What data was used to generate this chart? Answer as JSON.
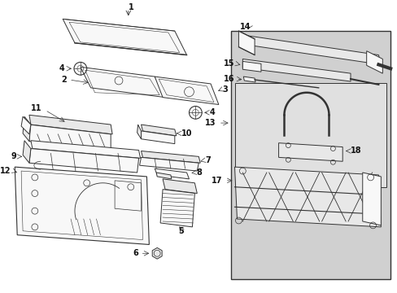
{
  "bg_color": "#ffffff",
  "lc": "#333333",
  "fc_light": "#f8f8f8",
  "fc_gray": "#e8e8e8",
  "fc_panel": "#d8d8d8",
  "figsize": [
    4.89,
    3.6
  ],
  "dpi": 100
}
